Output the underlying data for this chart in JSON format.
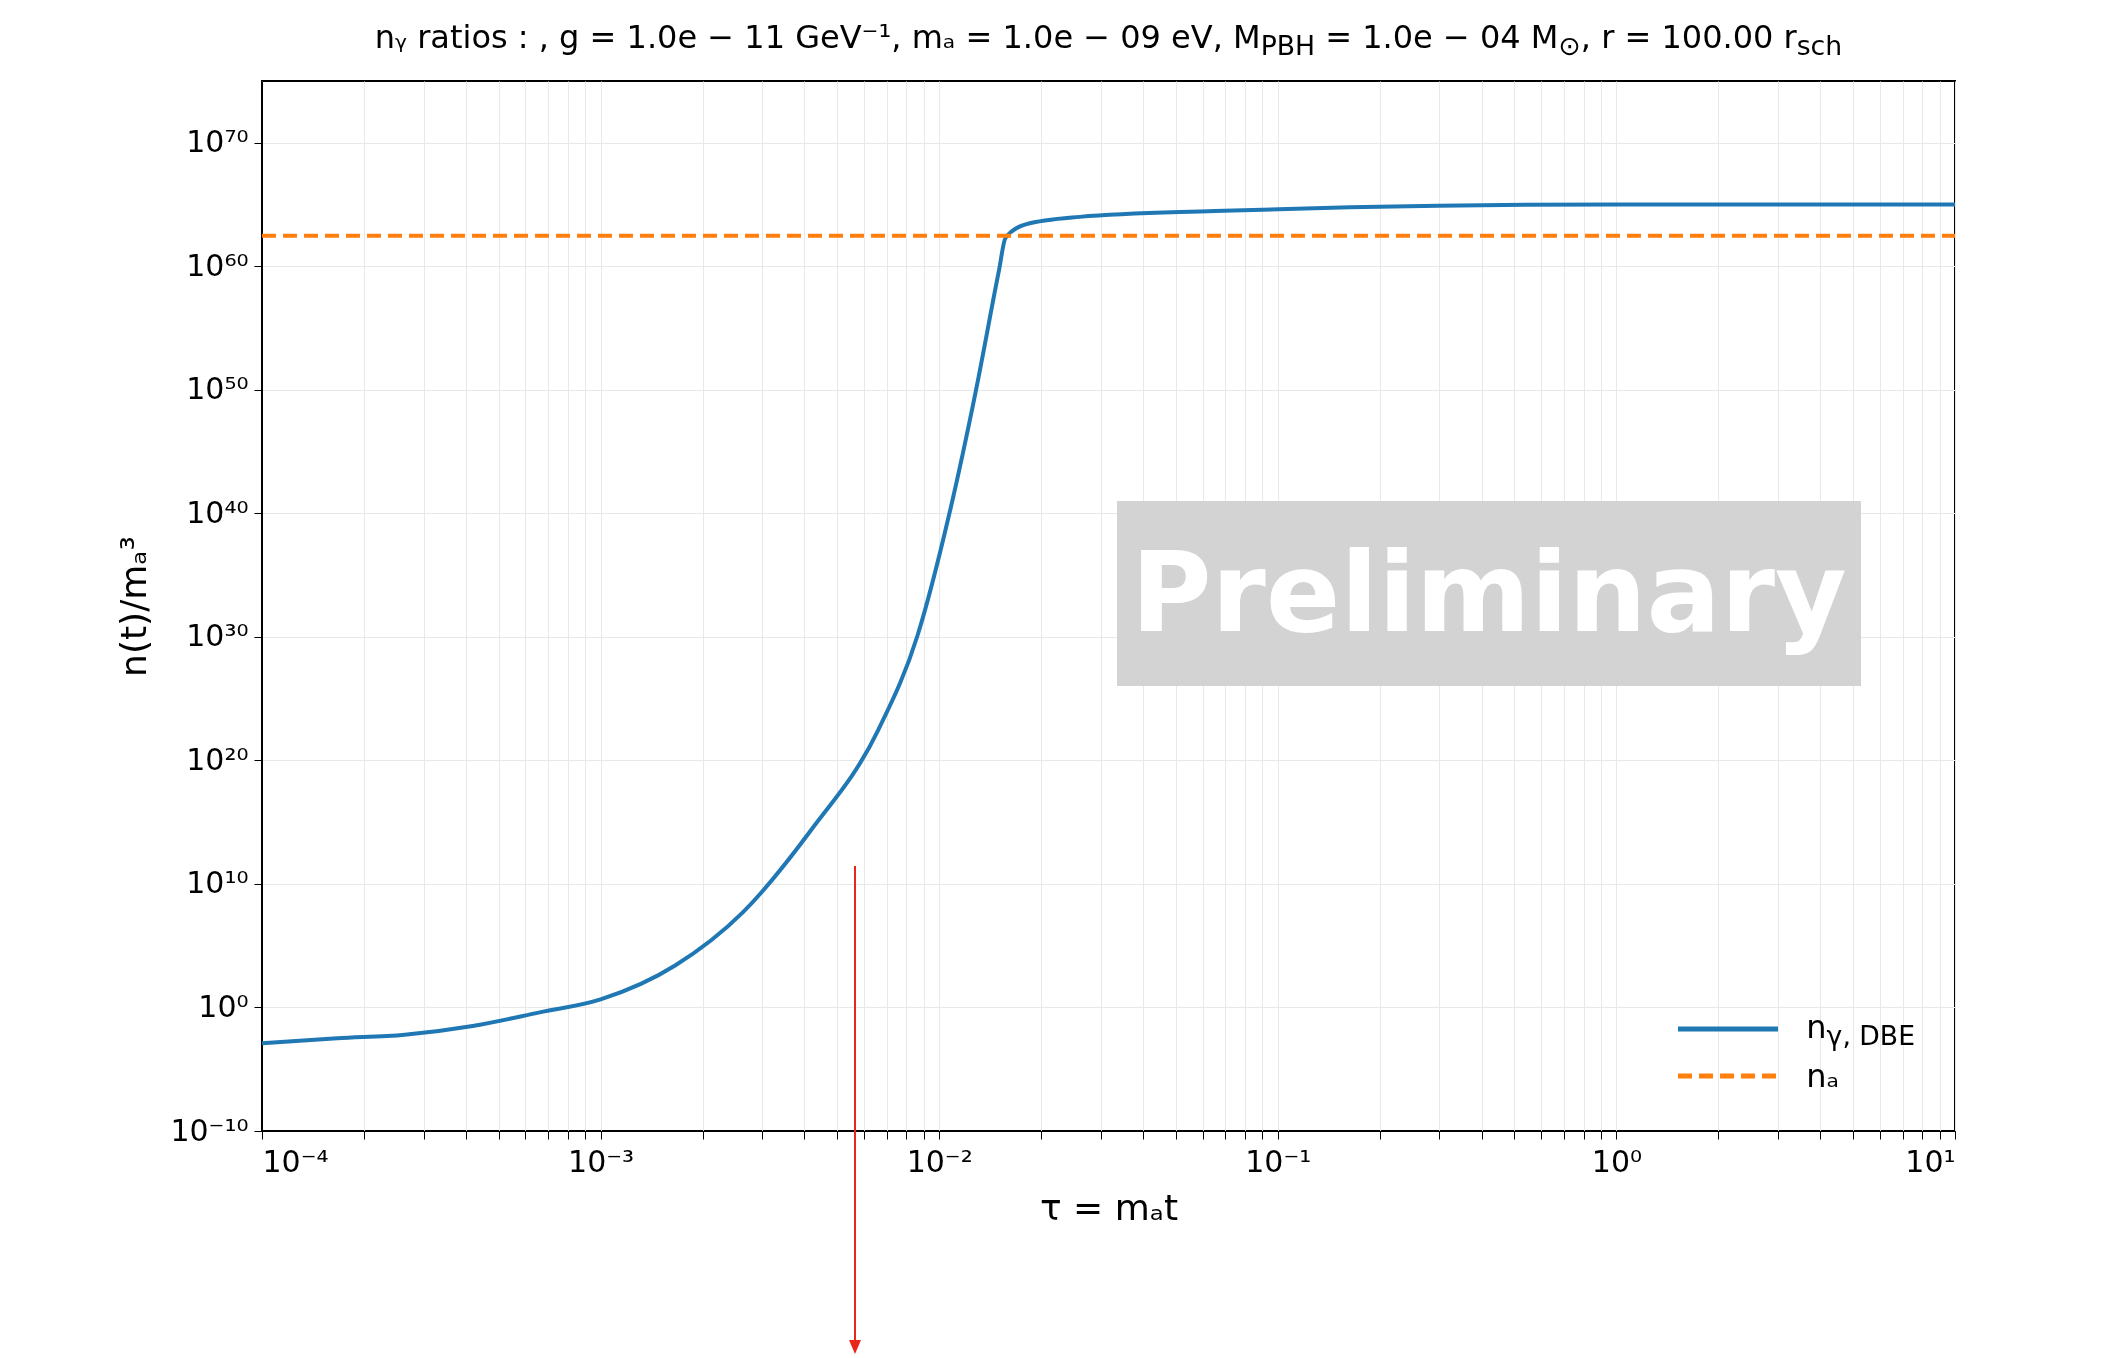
{
  "chart_data": {
    "type": "line",
    "title": "nᵧ ratios : ,  g = 1.0e − 11 GeV⁻¹,  mₐ = 1.0e − 09 eV,  M$_{PBH}$ = 1.0e − 04 M$_{⊙}$,  r = 100.00 r$_{sch}$",
    "xlabel": "τ = mₐt",
    "ylabel": "n(t)/mₐ³",
    "log": "xy",
    "grid": true,
    "legend": "bottom right",
    "annotations": [
      "Preliminary"
    ],
    "xlim": [
      0.0001,
      10
    ],
    "ylim": [
      1e-10,
      1e+75
    ],
    "xticks": [
      {
        "value": 0.0001,
        "label": "10⁻⁴"
      },
      {
        "value": 0.0002,
        "label": null
      },
      {
        "value": 0.0003,
        "label": null
      },
      {
        "value": 0.0004,
        "label": null
      },
      {
        "value": 0.0005,
        "label": null
      },
      {
        "value": 0.0006,
        "label": null
      },
      {
        "value": 0.0007,
        "label": null
      },
      {
        "value": 0.0008,
        "label": null
      },
      {
        "value": 0.0009,
        "label": null
      },
      {
        "value": 0.001,
        "label": "10⁻³"
      },
      {
        "value": 0.002,
        "label": null
      },
      {
        "value": 0.003,
        "label": null
      },
      {
        "value": 0.004,
        "label": null
      },
      {
        "value": 0.005,
        "label": null
      },
      {
        "value": 0.006,
        "label": null
      },
      {
        "value": 0.007,
        "label": null
      },
      {
        "value": 0.008,
        "label": null
      },
      {
        "value": 0.009,
        "label": null
      },
      {
        "value": 0.01,
        "label": "10⁻²"
      },
      {
        "value": 0.02,
        "label": null
      },
      {
        "value": 0.03,
        "label": null
      },
      {
        "value": 0.04,
        "label": null
      },
      {
        "value": 0.05,
        "label": null
      },
      {
        "value": 0.06,
        "label": null
      },
      {
        "value": 0.07,
        "label": null
      },
      {
        "value": 0.08,
        "label": null
      },
      {
        "value": 0.09,
        "label": null
      },
      {
        "value": 0.1,
        "label": "10⁻¹"
      },
      {
        "value": 0.2,
        "label": null
      },
      {
        "value": 0.3,
        "label": null
      },
      {
        "value": 0.4,
        "label": null
      },
      {
        "value": 0.5,
        "label": null
      },
      {
        "value": 0.6,
        "label": null
      },
      {
        "value": 0.7,
        "label": null
      },
      {
        "value": 0.8,
        "label": null
      },
      {
        "value": 0.9,
        "label": null
      },
      {
        "value": 1,
        "label": "10⁰"
      },
      {
        "value": 2,
        "label": null
      },
      {
        "value": 3,
        "label": null
      },
      {
        "value": 4,
        "label": null
      },
      {
        "value": 5,
        "label": null
      },
      {
        "value": 6,
        "label": null
      },
      {
        "value": 7,
        "label": null
      },
      {
        "value": 8,
        "label": null
      },
      {
        "value": 9,
        "label": null
      },
      {
        "value": 10,
        "label": "10¹"
      }
    ],
    "yticks": [
      {
        "value": 1e-10,
        "label": "10⁻¹⁰"
      },
      {
        "value": 1,
        "label": "10⁰"
      },
      {
        "value": 10000000000.0,
        "label": "10¹⁰"
      },
      {
        "value": 1e+20,
        "label": "10²⁰"
      },
      {
        "value": 1e+30,
        "label": "10³⁰"
      },
      {
        "value": 1e+40,
        "label": "10⁴⁰"
      },
      {
        "value": 1e+50,
        "label": "10⁵⁰"
      },
      {
        "value": 1e+60,
        "label": "10⁶⁰"
      },
      {
        "value": 1e+70,
        "label": "10⁷⁰"
      }
    ],
    "series": [
      {
        "name": "n$_{γ, DBE}$",
        "color": "#1f77b4",
        "x": [
          0.0001,
          0.000167,
          0.000264,
          0.000419,
          0.000661,
          0.001,
          0.00166,
          0.00263,
          0.00417,
          0.00661,
          0.00863,
          0.0107,
          0.0128,
          0.015,
          0.0157,
          0.018,
          0.026,
          0.065,
          0.163,
          1,
          10
        ],
        "values": [
          0.00126,
          0.0032,
          0.0063,
          0.032,
          0.4,
          4.5,
          2500.0,
          50000000.0,
          200000000000000.0,
          3e+22,
          1.3e+30,
          8e+39,
          6e+49,
          4e+59,
          2e+62,
          2.5e+63,
          1e+64,
          3e+64,
          6e+64,
          1e+65,
          1e+65
        ]
      },
      {
        "name": "nₐ",
        "color": "#ff7f0e",
        "line_style": "dashed",
        "x": [
          0.0001,
          10
        ],
        "values": [
          3e+62,
          3e+62
        ]
      }
    ]
  }
}
